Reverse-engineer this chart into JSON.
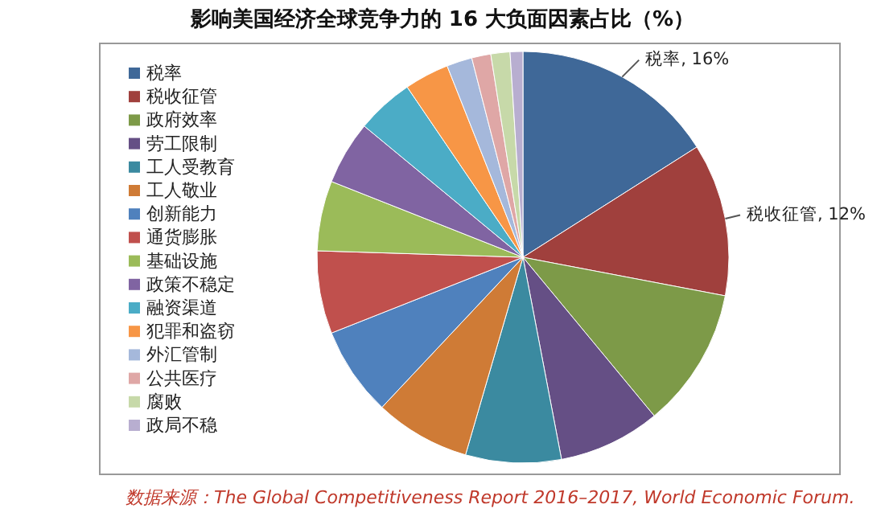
{
  "chart_data": {
    "type": "pie",
    "title": "影响美国经济全球竞争力的 16 大负面因素占比（%）",
    "categories": [
      "税率",
      "税收征管",
      "政府效率",
      "劳工限制",
      "工人受教育",
      "工人敬业",
      "创新能力",
      "通货膨胀",
      "基础设施",
      "政策不稳定",
      "融资渠道",
      "犯罪和盗窃",
      "外汇管制",
      "公共医疗",
      "腐败",
      "政局不稳"
    ],
    "values": [
      16,
      12,
      11,
      8,
      7.5,
      7.5,
      7,
      6.5,
      5.5,
      5,
      4.5,
      3.5,
      2,
      1.5,
      1.5,
      1
    ],
    "colors": [
      "#3f6898",
      "#a0403d",
      "#7d9a48",
      "#654f85",
      "#3b8aa0",
      "#cf7b36",
      "#4f81bd",
      "#c0504d",
      "#9bbb59",
      "#8064a2",
      "#4bacc6",
      "#f79646",
      "#a5b8db",
      "#dfa7a6",
      "#c7d9a9",
      "#b8aed0"
    ],
    "value_labels": [
      "税率, 16%",
      "税收征管, 12%",
      null,
      null,
      null,
      null,
      null,
      null,
      null,
      null,
      null,
      null,
      null,
      null,
      null,
      null
    ],
    "legend": "left",
    "annotations": [
      "数据来源：The Global Competitiveness Report 2016–2017, World Economic Forum."
    ]
  }
}
